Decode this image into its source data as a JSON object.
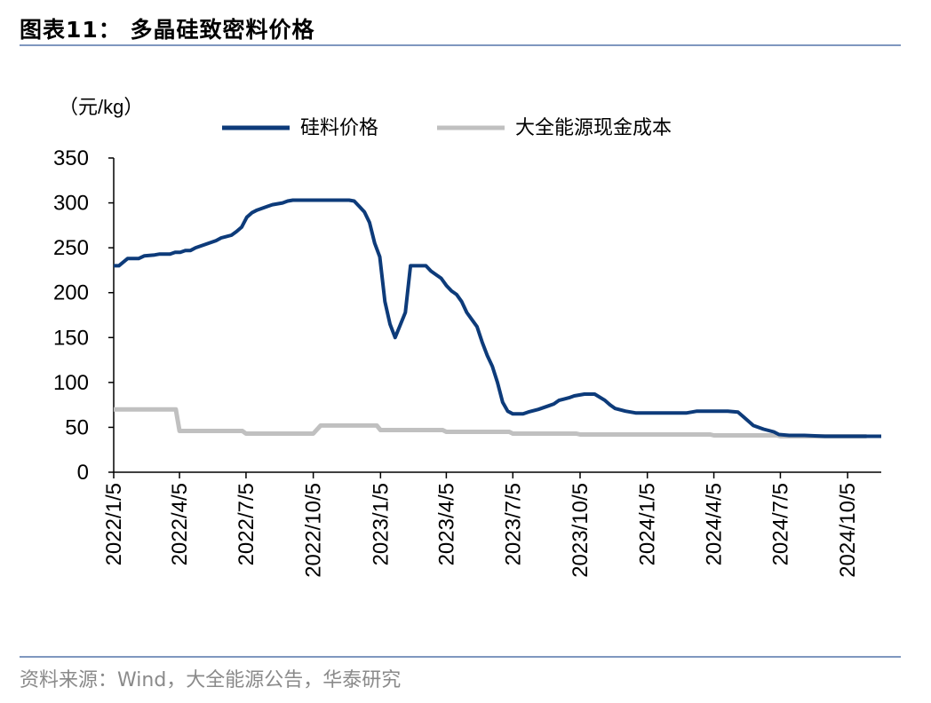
{
  "header": {
    "title": "图表11：  多晶硅致密料价格"
  },
  "footer": {
    "source": "资料来源：Wind，大全能源公告，华泰研究"
  },
  "chart_data": {
    "type": "line",
    "unit_label": "（元/kg）",
    "x_type": "date",
    "x_range": [
      "2022-01-05",
      "2024-11-20"
    ],
    "x_ticks": [
      "2022-01-05",
      "2022-04-05",
      "2022-07-05",
      "2022-10-05",
      "2023-01-05",
      "2023-04-05",
      "2023-07-05",
      "2023-10-05",
      "2024-01-05",
      "2024-04-05",
      "2024-07-05",
      "2024-10-05"
    ],
    "x_tick_labels": [
      "2022/1/5",
      "2022/4/5",
      "2022/7/5",
      "2022/10/5",
      "2023/1/5",
      "2023/4/5",
      "2023/7/5",
      "2023/10/5",
      "2024/1/5",
      "2024/4/5",
      "2024/7/5",
      "2024/10/5"
    ],
    "ylim": [
      0,
      350
    ],
    "y_ticks": [
      0,
      50,
      100,
      150,
      200,
      250,
      300,
      350
    ],
    "grid": false,
    "legend_position": "top",
    "series": [
      {
        "name": "硅料价格",
        "color": "#0d3b7a",
        "points": [
          [
            "2022-01-05",
            230
          ],
          [
            "2022-01-12",
            230
          ],
          [
            "2022-01-24",
            238
          ],
          [
            "2022-02-08",
            238
          ],
          [
            "2022-02-16",
            241
          ],
          [
            "2022-03-02",
            242
          ],
          [
            "2022-03-09",
            243
          ],
          [
            "2022-03-23",
            243
          ],
          [
            "2022-03-30",
            245
          ],
          [
            "2022-04-06",
            245
          ],
          [
            "2022-04-13",
            247
          ],
          [
            "2022-04-20",
            247
          ],
          [
            "2022-04-27",
            250
          ],
          [
            "2022-05-11",
            254
          ],
          [
            "2022-05-25",
            258
          ],
          [
            "2022-06-01",
            261
          ],
          [
            "2022-06-15",
            264
          ],
          [
            "2022-06-22",
            268
          ],
          [
            "2022-06-29",
            273
          ],
          [
            "2022-07-06",
            284
          ],
          [
            "2022-07-13",
            289
          ],
          [
            "2022-07-20",
            292
          ],
          [
            "2022-08-03",
            296
          ],
          [
            "2022-08-10",
            298
          ],
          [
            "2022-08-24",
            300
          ],
          [
            "2022-08-31",
            302
          ],
          [
            "2022-09-07",
            303
          ],
          [
            "2022-09-21",
            303
          ],
          [
            "2022-10-05",
            303
          ],
          [
            "2022-10-19",
            303
          ],
          [
            "2022-11-09",
            303
          ],
          [
            "2022-11-23",
            303
          ],
          [
            "2022-11-30",
            302
          ],
          [
            "2022-12-07",
            296
          ],
          [
            "2022-12-14",
            290
          ],
          [
            "2022-12-21",
            278
          ],
          [
            "2022-12-28",
            255
          ],
          [
            "2023-01-04",
            240
          ],
          [
            "2023-01-11",
            190
          ],
          [
            "2023-01-18",
            165
          ],
          [
            "2023-01-25",
            150
          ],
          [
            "2023-02-08",
            178
          ],
          [
            "2023-02-15",
            230
          ],
          [
            "2023-02-22",
            230
          ],
          [
            "2023-03-08",
            230
          ],
          [
            "2023-03-15",
            224
          ],
          [
            "2023-03-22",
            220
          ],
          [
            "2023-03-29",
            216
          ],
          [
            "2023-04-05",
            208
          ],
          [
            "2023-04-12",
            202
          ],
          [
            "2023-04-19",
            198
          ],
          [
            "2023-04-26",
            190
          ],
          [
            "2023-05-03",
            178
          ],
          [
            "2023-05-10",
            170
          ],
          [
            "2023-05-17",
            162
          ],
          [
            "2023-05-24",
            145
          ],
          [
            "2023-05-31",
            130
          ],
          [
            "2023-06-07",
            118
          ],
          [
            "2023-06-14",
            100
          ],
          [
            "2023-06-21",
            78
          ],
          [
            "2023-06-28",
            68
          ],
          [
            "2023-07-05",
            65
          ],
          [
            "2023-07-19",
            65
          ],
          [
            "2023-07-26",
            67
          ],
          [
            "2023-08-09",
            70
          ],
          [
            "2023-08-23",
            74
          ],
          [
            "2023-08-30",
            76
          ],
          [
            "2023-09-06",
            80
          ],
          [
            "2023-09-20",
            83
          ],
          [
            "2023-09-27",
            85
          ],
          [
            "2023-10-04",
            86
          ],
          [
            "2023-10-11",
            87
          ],
          [
            "2023-10-25",
            87
          ],
          [
            "2023-11-08",
            80
          ],
          [
            "2023-11-15",
            75
          ],
          [
            "2023-11-22",
            71
          ],
          [
            "2023-12-06",
            68
          ],
          [
            "2023-12-20",
            66
          ],
          [
            "2024-01-03",
            66
          ],
          [
            "2024-02-07",
            66
          ],
          [
            "2024-02-28",
            66
          ],
          [
            "2024-03-06",
            67
          ],
          [
            "2024-03-13",
            68
          ],
          [
            "2024-03-27",
            68
          ],
          [
            "2024-04-10",
            68
          ],
          [
            "2024-04-24",
            68
          ],
          [
            "2024-05-08",
            67
          ],
          [
            "2024-05-15",
            62
          ],
          [
            "2024-05-22",
            57
          ],
          [
            "2024-05-29",
            52
          ],
          [
            "2024-06-12",
            48
          ],
          [
            "2024-06-26",
            45
          ],
          [
            "2024-07-03",
            42
          ],
          [
            "2024-07-17",
            41
          ],
          [
            "2024-08-07",
            41
          ],
          [
            "2024-09-04",
            40
          ],
          [
            "2024-10-02",
            40
          ],
          [
            "2024-11-06",
            40
          ],
          [
            "2024-11-20",
            40
          ]
        ]
      },
      {
        "name": "大全能源现金成本",
        "color": "#c0c0c0",
        "points": [
          [
            "2022-01-05",
            70
          ],
          [
            "2022-03-31",
            70
          ],
          [
            "2022-04-05",
            46
          ],
          [
            "2022-06-30",
            46
          ],
          [
            "2022-07-05",
            43
          ],
          [
            "2022-09-30",
            43
          ],
          [
            "2022-10-05",
            43
          ],
          [
            "2022-10-15",
            52
          ],
          [
            "2022-12-31",
            52
          ],
          [
            "2023-01-05",
            47
          ],
          [
            "2023-03-31",
            47
          ],
          [
            "2023-04-05",
            45
          ],
          [
            "2023-06-30",
            45
          ],
          [
            "2023-07-05",
            43
          ],
          [
            "2023-09-30",
            43
          ],
          [
            "2023-10-05",
            42
          ],
          [
            "2023-12-31",
            42
          ],
          [
            "2024-01-05",
            42
          ],
          [
            "2024-03-31",
            42
          ],
          [
            "2024-04-05",
            41
          ],
          [
            "2024-06-30",
            41
          ],
          [
            "2024-07-05",
            40
          ],
          [
            "2024-09-30",
            40
          ],
          [
            "2024-10-05",
            40
          ],
          [
            "2024-10-31",
            40
          ]
        ]
      }
    ]
  }
}
